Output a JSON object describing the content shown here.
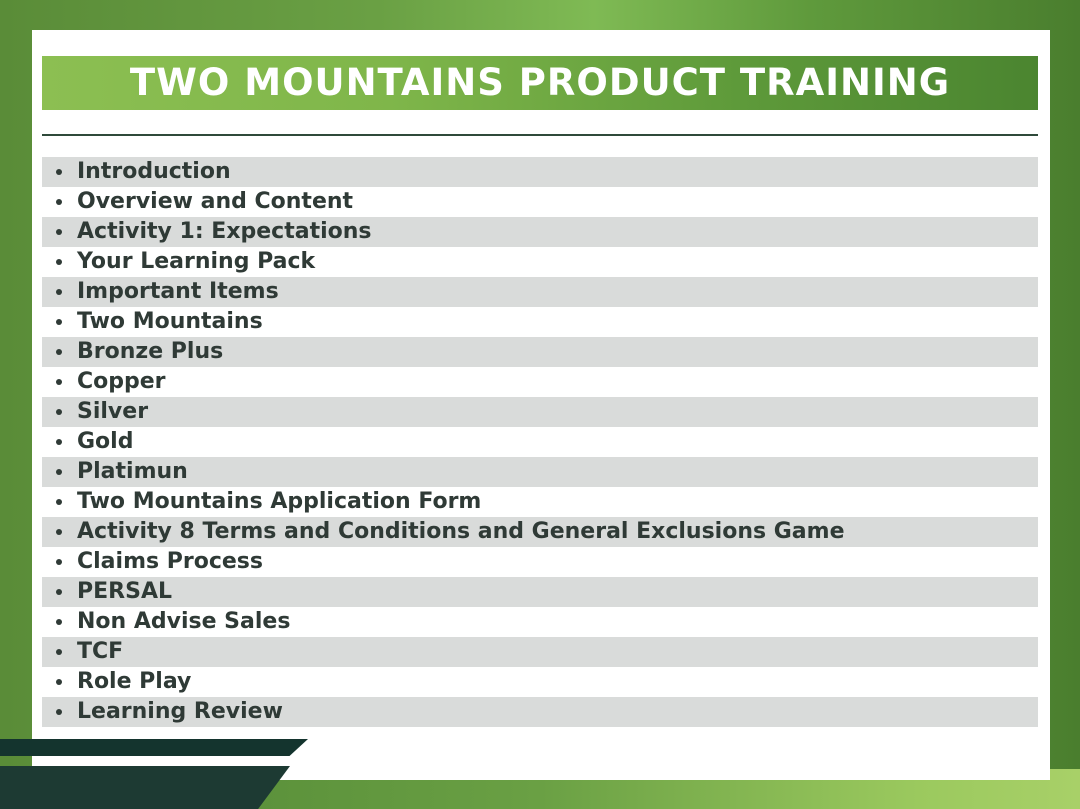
{
  "title": "TWO MOUNTAINS PRODUCT TRAINING",
  "colors": {
    "frame_green": "#6aa044",
    "title_left": "#8cbf52",
    "title_right": "#4b8530",
    "row_shade": "#d9dbda",
    "text": "#2f3a36",
    "dark_stripe": "#14342e"
  },
  "items": [
    "Introduction",
    "Overview and Content",
    "Activity 1: Expectations",
    "Your Learning Pack",
    "Important Items",
    "Two Mountains",
    "Bronze Plus",
    "Copper",
    "Silver",
    "Gold",
    "Platimun",
    "Two Mountains Application Form",
    "Activity 8 Terms and Conditions and General Exclusions Game",
    "Claims Process",
    "PERSAL",
    "Non Advise Sales",
    "TCF",
    "Role Play",
    "Learning Review"
  ]
}
